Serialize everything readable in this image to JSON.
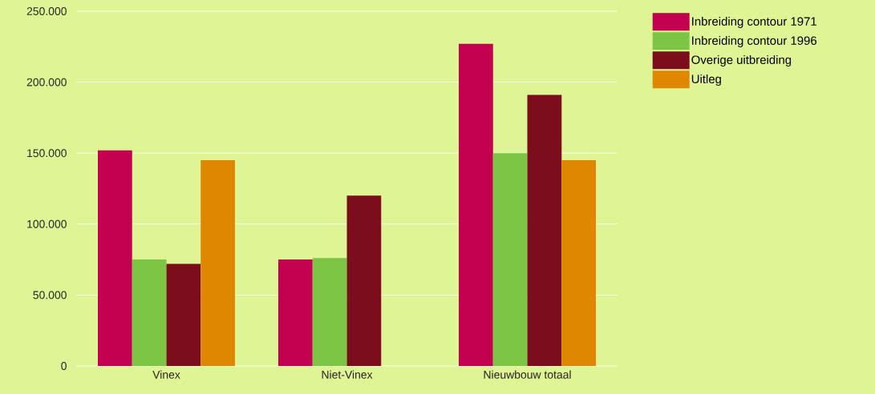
{
  "chart_data": {
    "type": "bar",
    "categories": [
      "Vinex",
      "Niet-Vinex",
      "Nieuwbouw totaal"
    ],
    "series": [
      {
        "name": "Inbreiding contour 1971",
        "color": "#c2004f",
        "values": [
          152000,
          75000,
          227000
        ]
      },
      {
        "name": "Inbreiding contour 1996",
        "color": "#7dc544",
        "values": [
          75000,
          76000,
          150000
        ]
      },
      {
        "name": "Overige uitbreiding",
        "color": "#7a0e1c",
        "values": [
          72000,
          120000,
          191000
        ]
      },
      {
        "name": "Uitleg",
        "color": "#e08700",
        "values": [
          145000,
          null,
          145000
        ]
      }
    ],
    "ylim": [
      0,
      250000
    ],
    "yticks": [
      {
        "value": 0,
        "label": "0"
      },
      {
        "value": 50000,
        "label": "50.000"
      },
      {
        "value": 100000,
        "label": "100.000"
      },
      {
        "value": 150000,
        "label": "150.000"
      },
      {
        "value": 200000,
        "label": "200.000"
      },
      {
        "value": 250000,
        "label": "250.000"
      }
    ],
    "grid": "y",
    "legend": "top right"
  }
}
